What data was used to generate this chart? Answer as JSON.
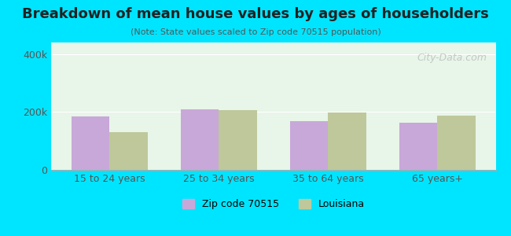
{
  "title": "Breakdown of mean house values by ages of householders",
  "subtitle": "(Note: State values scaled to Zip code 70515 population)",
  "categories": [
    "15 to 24 years",
    "25 to 34 years",
    "35 to 64 years",
    "65 years+"
  ],
  "zip_values": [
    185000,
    210000,
    168000,
    162000
  ],
  "state_values": [
    130000,
    207000,
    197000,
    187000
  ],
  "zip_color": "#c8a8d8",
  "state_color": "#bec89a",
  "background_outer": "#00e5ff",
  "background_plot": "#e8f5e9",
  "background_plot_top": "#e0f0e0",
  "ylim": [
    0,
    440000
  ],
  "yticks": [
    0,
    200000,
    400000
  ],
  "ytick_labels": [
    "0",
    "200k",
    "400k"
  ],
  "legend_zip_label": "Zip code 70515",
  "legend_state_label": "Louisiana",
  "bar_width": 0.35,
  "watermark": "City-Data.com"
}
